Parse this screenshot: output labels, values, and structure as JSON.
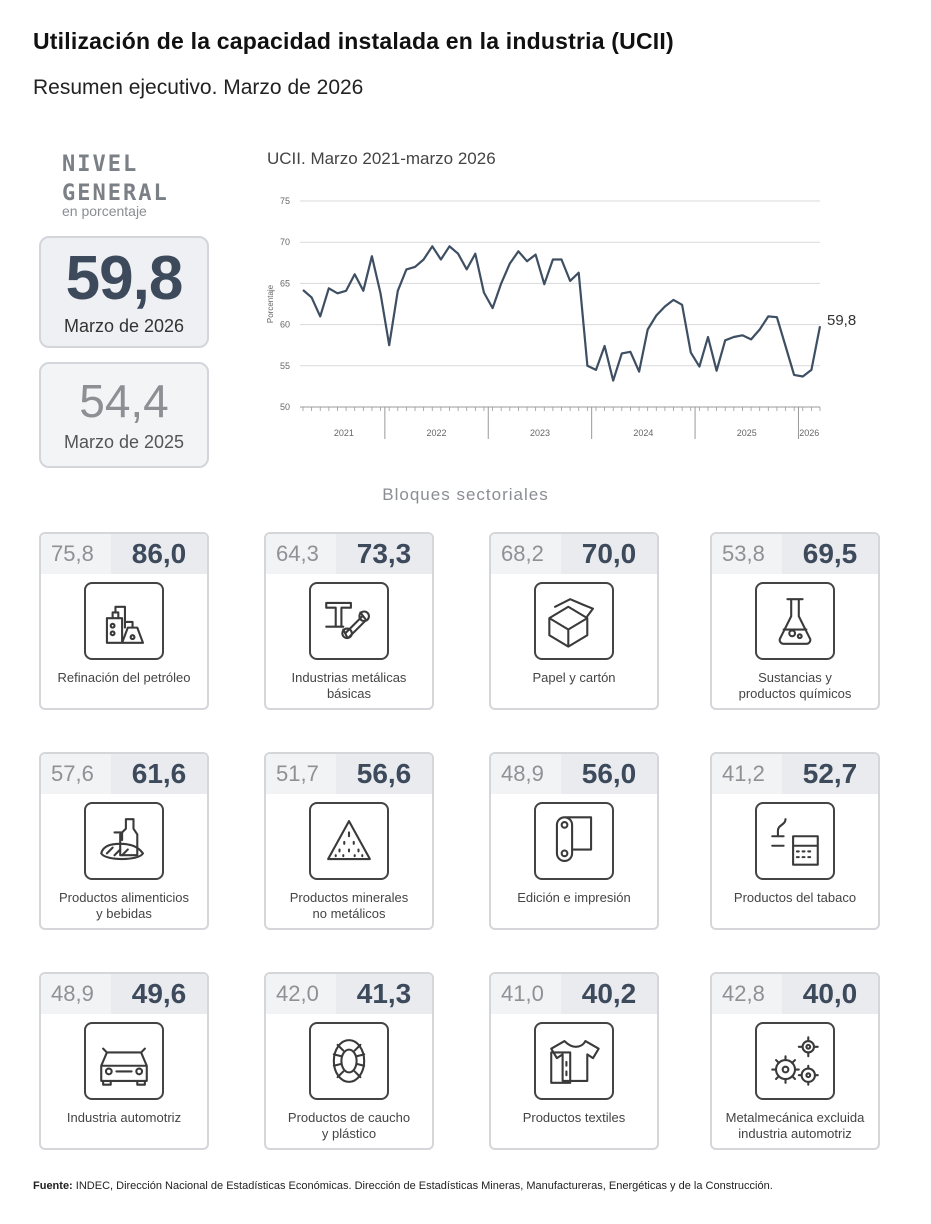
{
  "title": "Utilización de la capacidad instalada en la industria (UCII)",
  "subtitle": "Resumen ejecutivo. Marzo de 2026",
  "nivel": {
    "line1": "NIVEL",
    "line2": "GENERAL",
    "unit": "en porcentaje"
  },
  "kpi": {
    "current_value": "59,8",
    "current_period": "Marzo de 2026",
    "previous_value": "54,4",
    "previous_period": "Marzo de 2025"
  },
  "chart_title": "UCII. Marzo 2021-marzo 2026",
  "chart_data": {
    "type": "line",
    "title": "UCII. Marzo 2021-marzo 2026",
    "ylabel": "Porcentaje",
    "ylim": [
      50,
      75
    ],
    "yticks": [
      50,
      55,
      60,
      65,
      70,
      75
    ],
    "year_labels": [
      "2021",
      "2022",
      "2023",
      "2024",
      "2025",
      "2026"
    ],
    "x_start": "2021-03",
    "last_label": "59,8",
    "grid": true,
    "series": [
      {
        "values": [
          64.2,
          63.3,
          61.0,
          64.4,
          63.8,
          64.1,
          66.1,
          64.1,
          68.3,
          63.8,
          57.5,
          64.1,
          66.7,
          67.0,
          67.9,
          69.5,
          67.9,
          69.5,
          68.6,
          66.7,
          68.6,
          63.9,
          62.0,
          65.0,
          67.4,
          68.9,
          67.7,
          68.5,
          64.9,
          67.9,
          67.9,
          65.3,
          66.3,
          55.0,
          54.5,
          57.4,
          53.2,
          56.5,
          56.7,
          54.3,
          59.4,
          61.1,
          62.2,
          63.0,
          62.4,
          56.6,
          54.9,
          58.5,
          54.4,
          58.1,
          58.5,
          58.7,
          58.2,
          59.4,
          61.0,
          60.9,
          57.4,
          53.9,
          53.7,
          54.5,
          59.8
        ]
      }
    ]
  },
  "blocks_title": "Bloques sectoriales",
  "sectors": [
    {
      "prev": "75,8",
      "cur": "86,0",
      "label1": "Refinación del petróleo",
      "label2": "",
      "icon": "refinery-icon"
    },
    {
      "prev": "64,3",
      "cur": "73,3",
      "label1": "Industrias metálicas",
      "label2": "básicas",
      "icon": "metal-beam-icon"
    },
    {
      "prev": "68,2",
      "cur": "70,0",
      "label1": "Papel y cartón",
      "label2": "",
      "icon": "cardboard-box-icon"
    },
    {
      "prev": "53,8",
      "cur": "69,5",
      "label1": "Sustancias y",
      "label2": "productos químicos",
      "icon": "flask-icon"
    },
    {
      "prev": "57,6",
      "cur": "61,6",
      "label1": "Productos alimenticios",
      "label2": "y bebidas",
      "icon": "food-bottle-icon"
    },
    {
      "prev": "51,7",
      "cur": "56,6",
      "label1": "Productos minerales",
      "label2": "no metálicos",
      "icon": "mineral-pile-icon"
    },
    {
      "prev": "48,9",
      "cur": "56,0",
      "label1": "Edición e impresión",
      "label2": "",
      "icon": "paper-roll-icon"
    },
    {
      "prev": "41,2",
      "cur": "52,7",
      "label1": "Productos del tabaco",
      "label2": "",
      "icon": "tobacco-icon"
    },
    {
      "prev": "48,9",
      "cur": "49,6",
      "label1": "Industria automotriz",
      "label2": "",
      "icon": "car-icon"
    },
    {
      "prev": "42,0",
      "cur": "41,3",
      "label1": "Productos de caucho",
      "label2": "y plástico",
      "icon": "tire-icon"
    },
    {
      "prev": "41,0",
      "cur": "40,2",
      "label1": "Productos textiles",
      "label2": "",
      "icon": "shirt-icon"
    },
    {
      "prev": "42,8",
      "cur": "40,0",
      "label1": "Metalmecánica excluida",
      "label2": "industria automotriz",
      "icon": "gears-icon"
    }
  ],
  "source": {
    "label": "Fuente:",
    "text": "INDEC, Dirección Nacional de Estadísticas Económicas. Dirección de Estadísticas Mineras, Manufactureras, Energéticas y de la Construcción."
  }
}
